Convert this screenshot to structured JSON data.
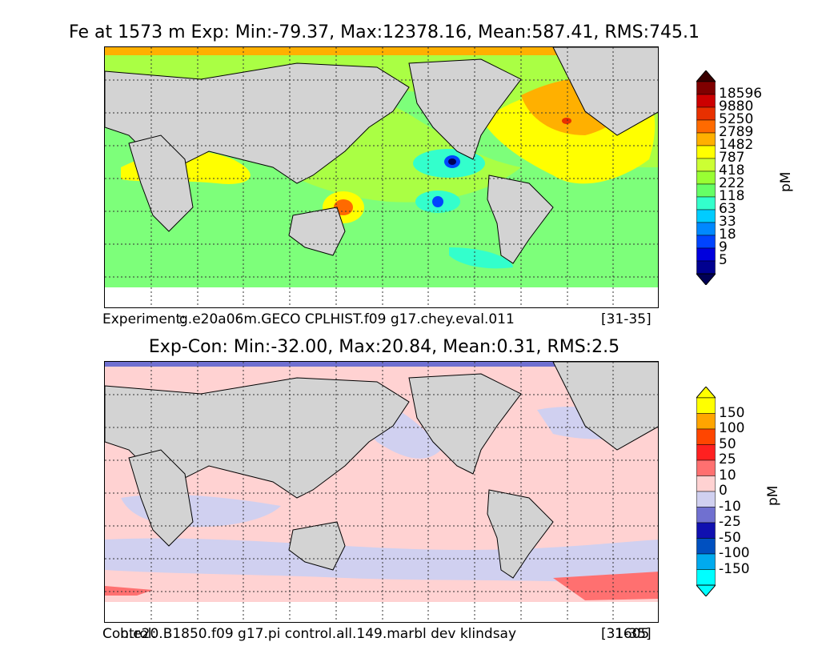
{
  "panels": [
    {
      "title": "Fe at 1573 m Exp: Min:-79.37, Max:12378.16, Mean:587.41, RMS:745.1",
      "caption_left": "Experiment:",
      "caption_case": "g.e20a06m.GECO CPLHIST.f09 g17.chey.eval.011",
      "caption_right": "[31-35]",
      "colorbar": {
        "unit": "pM",
        "ticks": [
          "18596",
          "9880",
          "5250",
          "2789",
          "1482",
          "787",
          "418",
          "222",
          "118",
          "63",
          "33",
          "18",
          "9",
          "5"
        ],
        "colors": [
          "#7f0000",
          "#cc0000",
          "#e83000",
          "#ff6a00",
          "#ffb000",
          "#ffff00",
          "#ccff33",
          "#99ff33",
          "#66ff66",
          "#33ffcc",
          "#00ccff",
          "#0088ff",
          "#0044ff",
          "#0000dd",
          "#000090"
        ],
        "over_color": "#3a0000",
        "under_color": "#000055"
      }
    },
    {
      "title": "Exp-Con: Min:-32.00, Max:20.84, Mean:0.31, RMS:2.5",
      "caption_left": "Control:",
      "caption_case": "b.e20.B1850.f09 g17.pi control.all.149.marbl dev klindsay",
      "caption_right": "[31-35]",
      "caption_extra": "1605",
      "colorbar": {
        "unit": "pM",
        "ticks": [
          "150",
          "100",
          "50",
          "25",
          "10",
          "0",
          "-10",
          "-25",
          "-50",
          "-100",
          "-150"
        ],
        "colors": [
          "#ffff00",
          "#ffa500",
          "#ff4500",
          "#ff2020",
          "#ff7070",
          "#ffd2d2",
          "#d0d0f0",
          "#7070d0",
          "#1010b0",
          "#0050c0",
          "#00aaee",
          "#00ffff"
        ],
        "over_color": "#ffff00",
        "under_color": "#00ffff"
      }
    }
  ]
}
